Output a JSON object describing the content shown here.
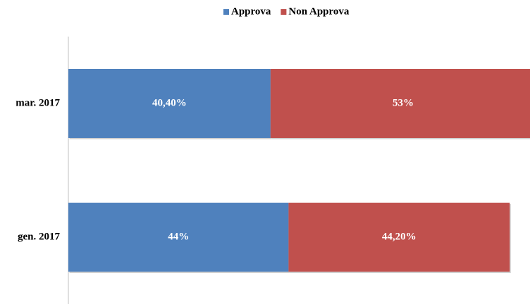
{
  "chart_data": {
    "type": "bar",
    "orientation": "horizontal",
    "stacked": true,
    "categories": [
      "mar. 2017",
      "gen. 2017"
    ],
    "series": [
      {
        "name": "Approva",
        "color": "#4f81bd",
        "values": [
          40.4,
          44
        ],
        "value_labels": [
          "40,40%",
          "44%"
        ]
      },
      {
        "name": "Non Approva",
        "color": "#c0504d",
        "values": [
          53,
          44.2
        ],
        "value_labels": [
          "53%",
          "44,20%"
        ]
      }
    ],
    "legend": "top"
  }
}
